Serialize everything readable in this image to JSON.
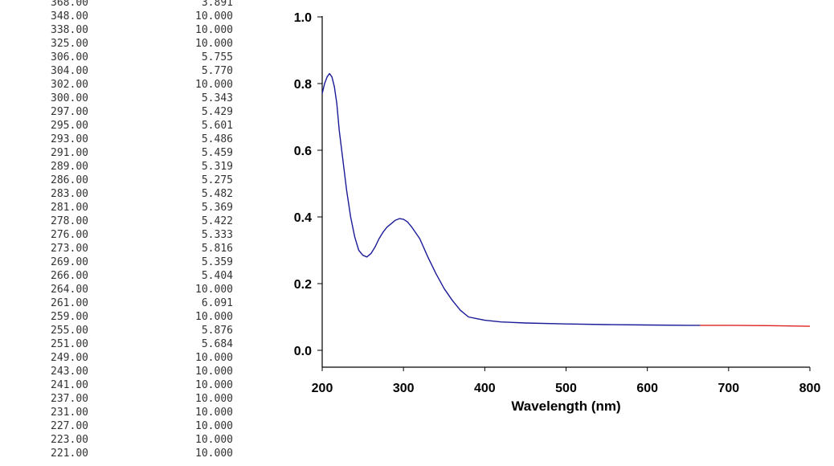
{
  "table": {
    "rows": [
      {
        "wavelength": "368.00",
        "absorbance": "3.891"
      },
      {
        "wavelength": "348.00",
        "absorbance": "10.000"
      },
      {
        "wavelength": "338.00",
        "absorbance": "10.000"
      },
      {
        "wavelength": "325.00",
        "absorbance": "10.000"
      },
      {
        "wavelength": "306.00",
        "absorbance": "5.755"
      },
      {
        "wavelength": "304.00",
        "absorbance": "5.770"
      },
      {
        "wavelength": "302.00",
        "absorbance": "10.000"
      },
      {
        "wavelength": "300.00",
        "absorbance": "5.343"
      },
      {
        "wavelength": "297.00",
        "absorbance": "5.429"
      },
      {
        "wavelength": "295.00",
        "absorbance": "5.601"
      },
      {
        "wavelength": "293.00",
        "absorbance": "5.486"
      },
      {
        "wavelength": "291.00",
        "absorbance": "5.459"
      },
      {
        "wavelength": "289.00",
        "absorbance": "5.319"
      },
      {
        "wavelength": "286.00",
        "absorbance": "5.275"
      },
      {
        "wavelength": "283.00",
        "absorbance": "5.482"
      },
      {
        "wavelength": "281.00",
        "absorbance": "5.369"
      },
      {
        "wavelength": "278.00",
        "absorbance": "5.422"
      },
      {
        "wavelength": "276.00",
        "absorbance": "5.333"
      },
      {
        "wavelength": "273.00",
        "absorbance": "5.816"
      },
      {
        "wavelength": "269.00",
        "absorbance": "5.359"
      },
      {
        "wavelength": "266.00",
        "absorbance": "5.404"
      },
      {
        "wavelength": "264.00",
        "absorbance": "10.000"
      },
      {
        "wavelength": "261.00",
        "absorbance": "6.091"
      },
      {
        "wavelength": "259.00",
        "absorbance": "10.000"
      },
      {
        "wavelength": "255.00",
        "absorbance": "5.876"
      },
      {
        "wavelength": "251.00",
        "absorbance": "5.684"
      },
      {
        "wavelength": "249.00",
        "absorbance": "10.000"
      },
      {
        "wavelength": "243.00",
        "absorbance": "10.000"
      },
      {
        "wavelength": "241.00",
        "absorbance": "10.000"
      },
      {
        "wavelength": "237.00",
        "absorbance": "10.000"
      },
      {
        "wavelength": "231.00",
        "absorbance": "10.000"
      },
      {
        "wavelength": "227.00",
        "absorbance": "10.000"
      },
      {
        "wavelength": "223.00",
        "absorbance": "10.000"
      },
      {
        "wavelength": "221.00",
        "absorbance": "10.000"
      }
    ]
  },
  "chart_data": {
    "type": "line",
    "title": "",
    "xlabel": "Wavelength (nm)",
    "ylabel": "",
    "xlim": [
      200,
      800
    ],
    "ylim": [
      0.0,
      1.0
    ],
    "x_ticks": [
      "200",
      "300",
      "400",
      "500",
      "600",
      "700",
      "800"
    ],
    "y_ticks": [
      "0.0",
      "0.2",
      "0.4",
      "0.6",
      "0.8",
      "1.0"
    ],
    "grid": false,
    "legend": "none",
    "series": [
      {
        "color": "#1a1a99",
        "x": [
          200,
          203,
          206,
          209,
          212,
          215,
          218,
          221,
          225,
          230,
          235,
          240,
          245,
          250,
          255,
          260,
          265,
          270,
          275,
          280,
          285,
          290,
          295,
          300,
          305,
          310,
          320,
          330,
          340,
          350,
          360,
          370,
          380,
          390,
          400,
          420,
          450,
          500,
          550,
          600,
          650,
          665
        ],
        "y": [
          0.77,
          0.8,
          0.82,
          0.83,
          0.82,
          0.79,
          0.74,
          0.66,
          0.58,
          0.48,
          0.4,
          0.34,
          0.3,
          0.285,
          0.28,
          0.29,
          0.31,
          0.335,
          0.355,
          0.37,
          0.38,
          0.39,
          0.395,
          0.393,
          0.385,
          0.37,
          0.335,
          0.28,
          0.23,
          0.185,
          0.15,
          0.12,
          0.1,
          0.095,
          0.09,
          0.085,
          0.082,
          0.079,
          0.077,
          0.076,
          0.075,
          0.075
        ]
      },
      {
        "color": "#dd2222",
        "x": [
          665,
          700,
          750,
          800
        ],
        "y": [
          0.075,
          0.075,
          0.074,
          0.072
        ]
      }
    ]
  }
}
